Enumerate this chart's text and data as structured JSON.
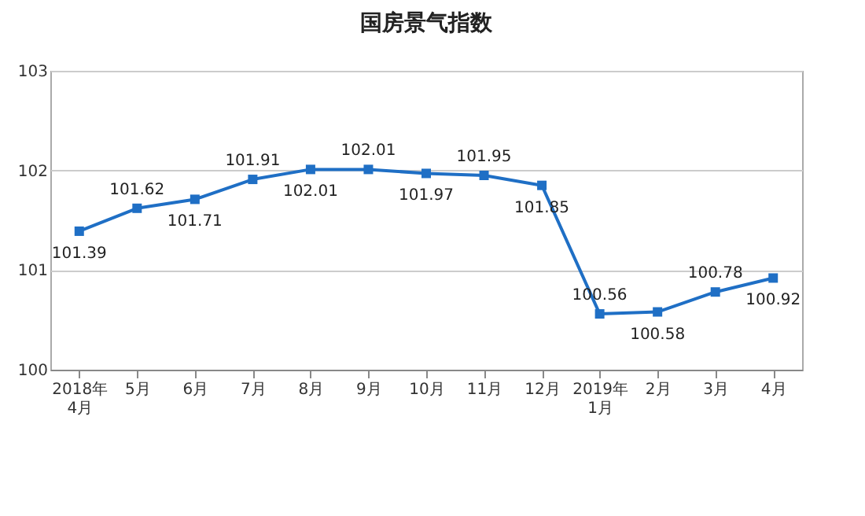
{
  "chart_data": {
    "type": "line",
    "title": "国房景气指数",
    "categories": [
      "2018年\n4月",
      "5月",
      "6月",
      "7月",
      "8月",
      "9月",
      "10月",
      "11月",
      "12月",
      "2019年\n1月",
      "2月",
      "3月",
      "4月"
    ],
    "series": [
      {
        "color": "#1f6fc5",
        "values": [
          101.39,
          101.62,
          101.71,
          101.91,
          102.01,
          102.01,
          101.97,
          101.95,
          101.85,
          100.56,
          100.58,
          100.78,
          100.92
        ]
      }
    ],
    "ylim": [
      100,
      103
    ],
    "yticks": [
      100,
      101,
      102,
      103
    ],
    "grid": "y",
    "marker": "square",
    "line_style": "solid",
    "data_labels": true,
    "legend": false
  }
}
